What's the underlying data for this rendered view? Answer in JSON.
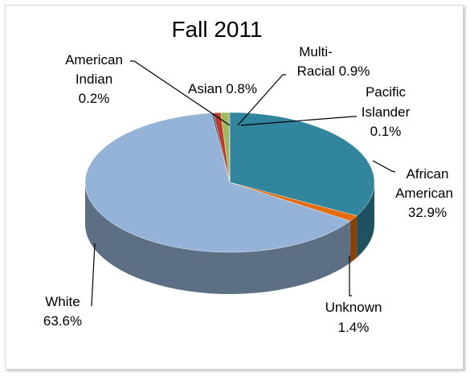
{
  "chart_data": {
    "type": "pie",
    "title": "Fall 2011",
    "style": "3d",
    "legend": "none",
    "slices": [
      {
        "name": "African American",
        "value": 32.9,
        "label_lines": [
          "African",
          "American",
          "32.9%"
        ],
        "color": "#31859c"
      },
      {
        "name": "Unknown",
        "value": 1.4,
        "label_lines": [
          "Unknown",
          "1.4%"
        ],
        "color": "#e46c0a"
      },
      {
        "name": "White",
        "value": 63.6,
        "label_lines": [
          "White",
          "63.6%"
        ],
        "color": "#95b3d7"
      },
      {
        "name": "American Indian",
        "value": 0.2,
        "label_lines": [
          "American",
          "Indian",
          "0.2%"
        ],
        "color": "#1f4e79"
      },
      {
        "name": "Asian",
        "value": 0.8,
        "label_lines": [
          "Asian  0.8%"
        ],
        "color": "#c0392b"
      },
      {
        "name": "Multi-Racial",
        "value": 0.9,
        "label_lines": [
          "Multi-",
          "Racial 0.9%"
        ],
        "color": "#9bbb59"
      },
      {
        "name": "Pacific Islander",
        "value": 0.1,
        "label_lines": [
          "Pacific",
          "Islander",
          "0.1%"
        ],
        "color": "#8064a2"
      }
    ]
  }
}
